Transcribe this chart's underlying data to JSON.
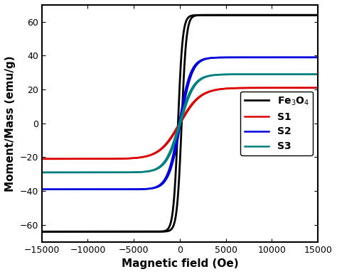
{
  "title": "",
  "xlabel": "Magnetic field (Oe)",
  "ylabel": "Moment/Mass (emu/g)",
  "xlim": [
    -15000,
    15000
  ],
  "ylim": [
    -70,
    70
  ],
  "xticks": [
    -15000,
    -10000,
    -5000,
    0,
    5000,
    10000,
    15000
  ],
  "yticks": [
    -60,
    -40,
    -20,
    0,
    20,
    40,
    60
  ],
  "series": [
    {
      "name": "Fe$_3$O$_4$",
      "color": "#000000",
      "Ms": 64,
      "Hc": 200,
      "steepness": 0.002,
      "lw": 2.0
    },
    {
      "name": "S1",
      "color": "#dd0000",
      "Ms": 21,
      "Hc": 50,
      "steepness": 0.00045,
      "lw": 1.8
    },
    {
      "name": "S2",
      "color": "#0000dd",
      "Ms": 39,
      "Hc": 80,
      "steepness": 0.0008,
      "lw": 1.8
    },
    {
      "name": "S3",
      "color": "#008080",
      "Ms": 29,
      "Hc": 70,
      "steepness": 0.00065,
      "lw": 1.8
    }
  ],
  "legend_loc": "center right",
  "legend_fontsize": 10,
  "xlabel_fontsize": 11,
  "ylabel_fontsize": 11,
  "tick_labelsize": 9,
  "spine_linewidth": 1.5,
  "background_color": "#ffffff"
}
